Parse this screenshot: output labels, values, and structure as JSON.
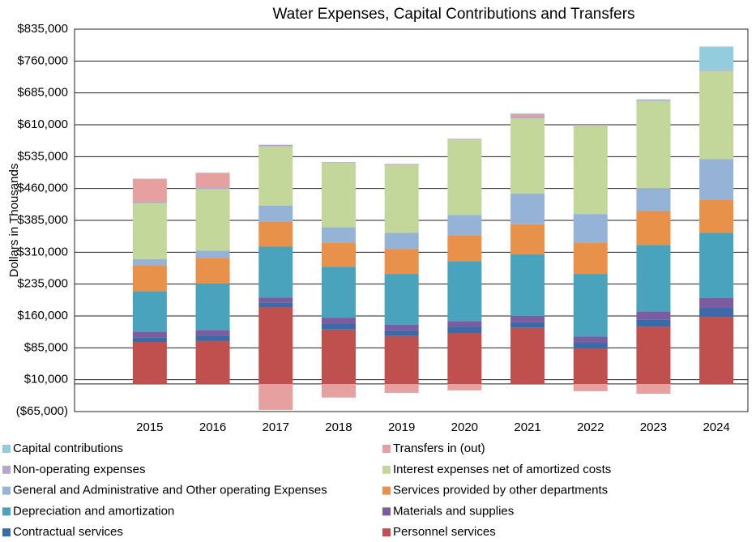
{
  "chart_data": {
    "type": "stacked-bar",
    "title": "Water Expenses, Capital Contributions and Transfers",
    "y_label": "Dollars in Thousands",
    "categories": [
      "2015",
      "2016",
      "2017",
      "2018",
      "2019",
      "2020",
      "2021",
      "2022",
      "2023",
      "2024"
    ],
    "ylim": [
      -65000,
      835000
    ],
    "yticks": [
      {
        "value": -65000,
        "label": "($65,000)"
      },
      {
        "value": 10000,
        "label": "$10,000"
      },
      {
        "value": 85000,
        "label": "$85,000"
      },
      {
        "value": 160000,
        "label": "$160,000"
      },
      {
        "value": 235000,
        "label": "$235,000"
      },
      {
        "value": 310000,
        "label": "$310,000"
      },
      {
        "value": 385000,
        "label": "$385,000"
      },
      {
        "value": 460000,
        "label": "$460,000"
      },
      {
        "value": 535000,
        "label": "$535,000"
      },
      {
        "value": 610000,
        "label": "$610,000"
      },
      {
        "value": 685000,
        "label": "$685,000"
      },
      {
        "value": 760000,
        "label": "$760,000"
      },
      {
        "value": 835000,
        "label": "$835,000"
      }
    ],
    "grid": true,
    "series": [
      {
        "name": "Personnel services",
        "color": "#c0504d",
        "values": [
          99000,
          101000,
          181000,
          128000,
          113000,
          120000,
          132000,
          84000,
          135000,
          158000
        ]
      },
      {
        "name": "Contractual services",
        "color": "#3a6aa8",
        "values": [
          11000,
          13000,
          11000,
          13000,
          13000,
          15000,
          13000,
          13000,
          17000,
          21000
        ]
      },
      {
        "name": "Materials and supplies",
        "color": "#7b5ca0",
        "values": [
          13000,
          13000,
          11000,
          15000,
          13000,
          13000,
          15000,
          15000,
          19000,
          23000
        ]
      },
      {
        "name": "Depreciation and amortization",
        "color": "#4aa3bd",
        "values": [
          95000,
          109000,
          120000,
          120000,
          120000,
          141000,
          145000,
          147000,
          156000,
          154000
        ]
      },
      {
        "name": "Services provided by other departments",
        "color": "#e8914a",
        "values": [
          61000,
          61000,
          59000,
          57000,
          59000,
          61000,
          71000,
          74000,
          80000,
          78000
        ]
      },
      {
        "name": "General and Administrative and Other operating Expenses",
        "color": "#95b3d7",
        "values": [
          15000,
          17000,
          38000,
          36000,
          38000,
          48000,
          72000,
          67000,
          53000,
          95000
        ]
      },
      {
        "name": "Interest expenses net of amortized costs",
        "color": "#c4d79b",
        "values": [
          132000,
          145000,
          139000,
          151000,
          160000,
          177000,
          177000,
          208000,
          206000,
          208000
        ]
      },
      {
        "name": "Non-operating expenses",
        "color": "#b7a5d0",
        "values": [
          4000,
          4000,
          4000,
          2000,
          2000,
          2000,
          4000,
          2000,
          2000,
          2000
        ]
      },
      {
        "name": "Transfers in (out)",
        "color": "#e6a0a0",
        "values": [
          53000,
          34000,
          -61000,
          -32000,
          -21000,
          -15000,
          6000,
          -17000,
          -23000,
          0
        ]
      },
      {
        "name": "Capital contributions",
        "color": "#93cddd",
        "values": [
          0,
          0,
          0,
          0,
          0,
          0,
          2000,
          0,
          2000,
          55000
        ]
      }
    ]
  }
}
